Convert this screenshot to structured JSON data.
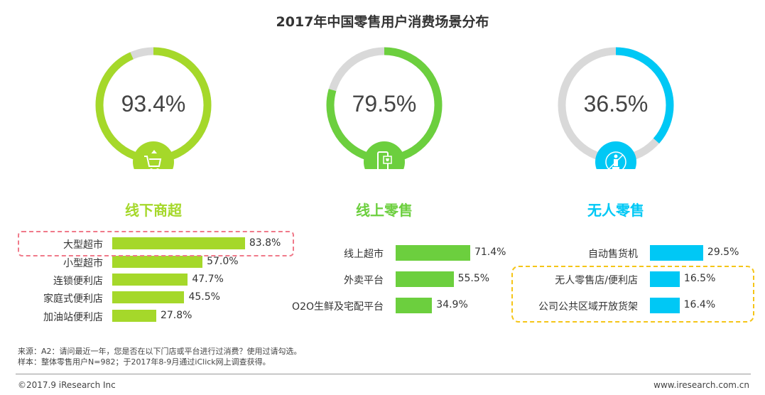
{
  "title": "2017年中国零售用户消费场景分布",
  "chart_data": [
    {
      "type": "bar",
      "category": "线下商超",
      "overall": "93.4%",
      "overall_value": 93.4,
      "color": "#a5d82a",
      "icon": "shopping-cart-icon",
      "categories": [
        "大型超市",
        "小型超市",
        "连锁便利店",
        "家庭式便利店",
        "加油站便利店"
      ],
      "values": [
        83.8,
        57.0,
        47.7,
        45.5,
        27.8
      ],
      "labels": [
        "83.8%",
        "57.0%",
        "47.7%",
        "45.5%",
        "27.8%"
      ]
    },
    {
      "type": "bar",
      "category": "线上零售",
      "overall": "79.5%",
      "overall_value": 79.5,
      "color": "#6ccf3e",
      "icon": "mobile-shop-icon",
      "categories": [
        "线上超市",
        "外卖平台",
        "O2O生鲜及宅配平台"
      ],
      "values": [
        71.4,
        55.5,
        34.9
      ],
      "labels": [
        "71.4%",
        "55.5%",
        "34.9%"
      ]
    },
    {
      "type": "bar",
      "category": "无人零售",
      "overall": "36.5%",
      "overall_value": 36.5,
      "color": "#00c8f5",
      "icon": "unmanned-icon",
      "categories": [
        "自动售货机",
        "无人零售店/便利店",
        "公司公共区域开放货架"
      ],
      "values": [
        29.5,
        16.5,
        16.4
      ],
      "labels": [
        "29.5%",
        "16.5%",
        "16.4%"
      ]
    }
  ],
  "notes": [
    "来源：A2：请问最近一年，您是否在以下门店或平台进行过消费？使用过请勾选。",
    "样本：整体零售用户N=982；于2017年8-9月通过iClick网上调查获得。"
  ],
  "footer": {
    "left": "©2017.9 iResearch Inc",
    "right": "www.iresearch.com.cn"
  }
}
